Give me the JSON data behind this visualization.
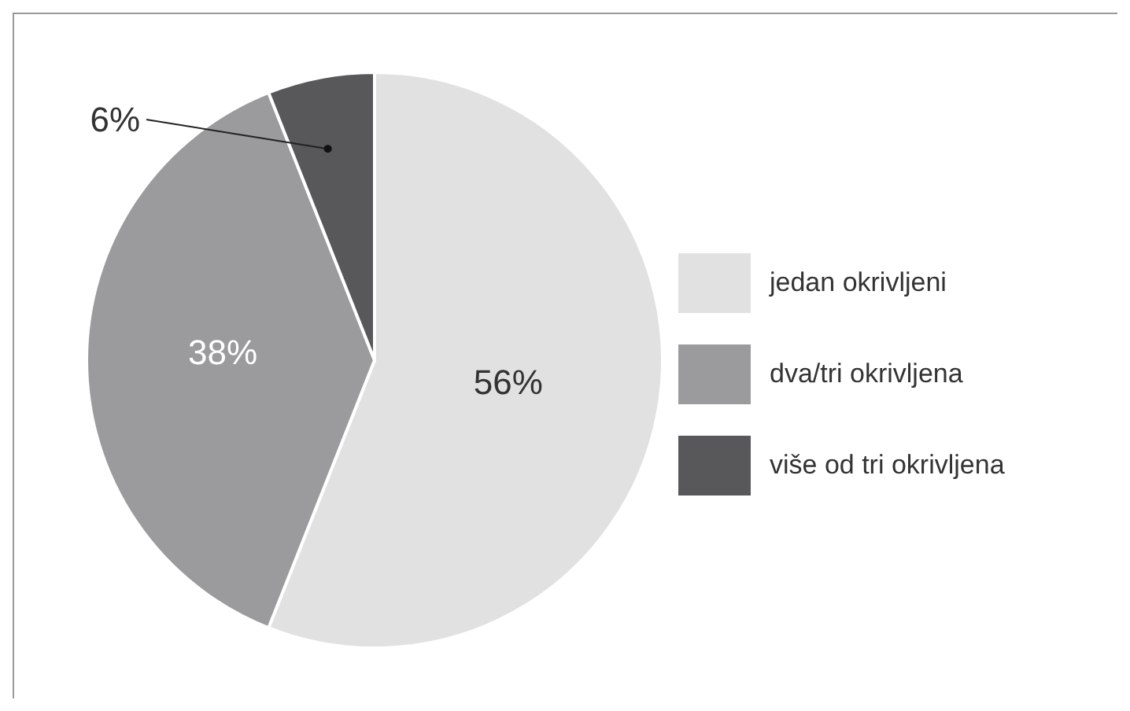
{
  "chart_data": {
    "type": "pie",
    "categories": [
      "jedan okrivljeni",
      "dva/tri okrivljena",
      "više od tri okrivljena"
    ],
    "values": [
      56,
      38,
      6
    ],
    "colors": [
      "#e1e1e2",
      "#9b9b9d",
      "#58585a"
    ],
    "value_labels": [
      "56%",
      "38%",
      "6%"
    ],
    "legend": "right"
  }
}
